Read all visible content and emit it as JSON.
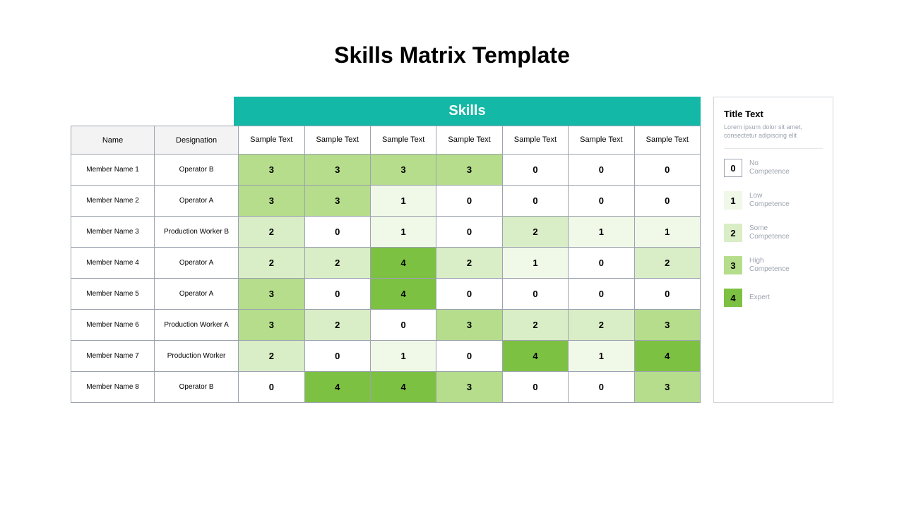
{
  "title": "Skills Matrix Template",
  "skills_banner": "Skills",
  "headers": {
    "name": "Name",
    "designation": "Designation"
  },
  "skill_columns": [
    "Sample Text",
    "Sample Text",
    "Sample Text",
    "Sample Text",
    "Sample Text",
    "Sample Text",
    "Sample Text"
  ],
  "members": [
    {
      "name": "Member Name 1",
      "designation": "Operator B",
      "scores": [
        3,
        3,
        3,
        3,
        0,
        0,
        0
      ]
    },
    {
      "name": "Member Name 2",
      "designation": "Operator A",
      "scores": [
        3,
        3,
        1,
        0,
        0,
        0,
        0
      ]
    },
    {
      "name": "Member Name 3",
      "designation": "Production Worker B",
      "scores": [
        2,
        0,
        1,
        0,
        2,
        1,
        1
      ]
    },
    {
      "name": "Member Name 4",
      "designation": "Operator A",
      "scores": [
        2,
        2,
        4,
        2,
        1,
        0,
        2
      ]
    },
    {
      "name": "Member Name 5",
      "designation": "Operator A",
      "scores": [
        3,
        0,
        4,
        0,
        0,
        0,
        0
      ]
    },
    {
      "name": "Member Name 6",
      "designation": "Production Worker A",
      "scores": [
        3,
        2,
        0,
        3,
        2,
        2,
        3
      ]
    },
    {
      "name": "Member Name 7",
      "designation": "Production Worker",
      "scores": [
        2,
        0,
        1,
        0,
        4,
        1,
        4
      ]
    },
    {
      "name": "Member Name 8",
      "designation": "Operator B",
      "scores": [
        0,
        4,
        4,
        3,
        0,
        0,
        3
      ]
    }
  ],
  "score_colors": {
    "0": "#ffffff",
    "1": "#f0f8e8",
    "2": "#d9edc6",
    "3": "#b5dd8b",
    "4": "#7cc142"
  },
  "legend": {
    "title": "Title Text",
    "description": "Lorem ipsum dolor sit amet, consectetur adipiscing elit",
    "items": [
      {
        "value": "0",
        "label": "No Competence"
      },
      {
        "value": "1",
        "label": "Low Competence"
      },
      {
        "value": "2",
        "label": "Some Competence"
      },
      {
        "value": "3",
        "label": "High Competence"
      },
      {
        "value": "4",
        "label": "Expert"
      }
    ]
  }
}
